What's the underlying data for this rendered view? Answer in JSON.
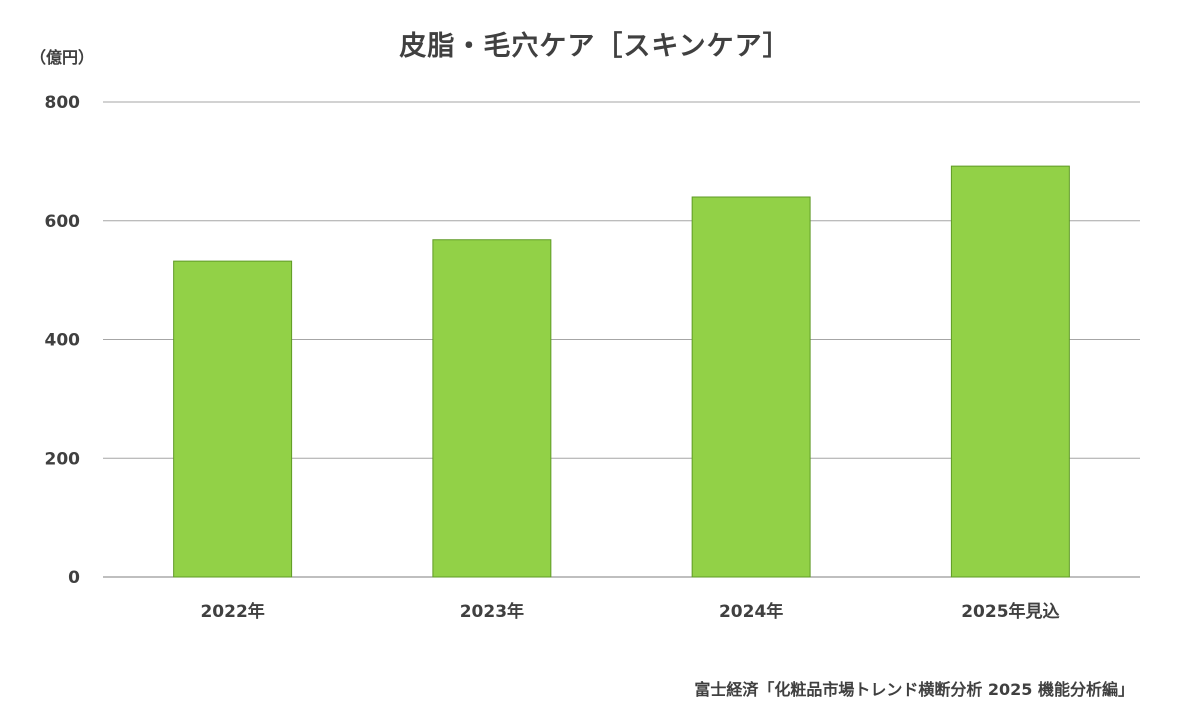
{
  "title": "皮脂・毛穴ケア［スキンケア］",
  "unit": "（億円）",
  "source": "富士経済「化粧品市場トレンド横断分析 2025 機能分析編」",
  "colors": {
    "bar_fill": "#92d147",
    "bar_stroke": "#5f9a25",
    "gridline": "#a6a6a6",
    "axis_line": "#7f7f7f",
    "text": "#404040"
  },
  "chart_data": {
    "type": "bar",
    "title": "皮脂・毛穴ケア［スキンケア］",
    "ylabel": "（億円）",
    "xlabel": "",
    "categories": [
      "2022年",
      "2023年",
      "2024年",
      "2025年見込"
    ],
    "values": [
      532,
      568,
      640,
      692
    ],
    "ylim": [
      0,
      800
    ],
    "yticks": [
      0,
      200,
      400,
      600,
      800
    ],
    "grid": true,
    "legend": "none"
  }
}
